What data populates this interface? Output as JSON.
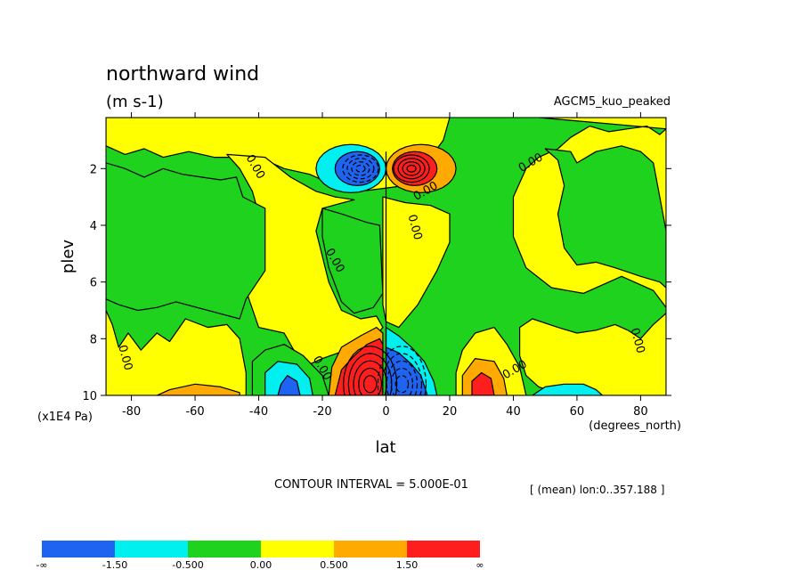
{
  "chart_data": {
    "type": "contour",
    "title": "northward wind",
    "subtitle": "(m s-1)",
    "model_label": "AGCM5_kuo_peaked",
    "xlabel": "lat",
    "x_units": "(degrees_north)",
    "ylabel": "plev",
    "y_units": "(x1E4 Pa)",
    "xlim": [
      -88,
      88
    ],
    "ylim": [
      0.2,
      10
    ],
    "y_inverted": true,
    "x_ticks": [
      -80,
      -60,
      -40,
      -20,
      0,
      20,
      40,
      60,
      80
    ],
    "y_ticks": [
      2,
      4,
      6,
      8,
      10
    ],
    "contour_interval_text": "CONTOUR INTERVAL = 5.000E-01",
    "mean_text": "[ (mean) lon:0..357.188 ]",
    "contour_labels": [
      {
        "text": "0.00",
        "lat": -42,
        "plev": 2.0
      },
      {
        "text": "0.00",
        "lat": 13,
        "plev": 2.9
      },
      {
        "text": "0.00",
        "lat": 8,
        "plev": 4.1
      },
      {
        "text": "0.00",
        "lat": -17,
        "plev": 5.3
      },
      {
        "text": "0.00",
        "lat": 46,
        "plev": 1.9
      },
      {
        "text": "0.00",
        "lat": -83,
        "plev": 8.7
      },
      {
        "text": "0.00",
        "lat": -21,
        "plev": 9.1
      },
      {
        "text": "0.00",
        "lat": 41,
        "plev": 9.2
      },
      {
        "text": "0.00",
        "lat": 78,
        "plev": 8.1
      }
    ],
    "colorbar": {
      "levels": [
        "-∞",
        "-1.50",
        "-0.500",
        "0.00",
        "0.500",
        "1.50",
        "∞"
      ],
      "colors": [
        "#1e64f0",
        "#00f0f0",
        "#1ed21e",
        "#ffff00",
        "#ffaa00",
        "#ff1e1e"
      ]
    },
    "regions": [
      {
        "name": "green-nh-background",
        "level": "-0.5..0",
        "color": "#1ed21e",
        "points": [
          [
            4,
            10
          ],
          [
            4,
            7.2
          ],
          [
            6,
            5
          ],
          [
            9,
            4.2
          ],
          [
            11,
            3.6
          ],
          [
            15,
            2.6
          ],
          [
            20,
            1.8
          ],
          [
            24,
            1.1
          ],
          [
            27,
            0.6
          ],
          [
            30,
            0.2
          ],
          [
            58,
            0.2
          ],
          [
            65,
            0.5
          ],
          [
            72,
            0.5
          ],
          [
            77,
            0.3
          ],
          [
            82,
            0.2
          ],
          [
            88,
            0.2
          ],
          [
            88,
            10
          ]
        ]
      }
    ]
  }
}
